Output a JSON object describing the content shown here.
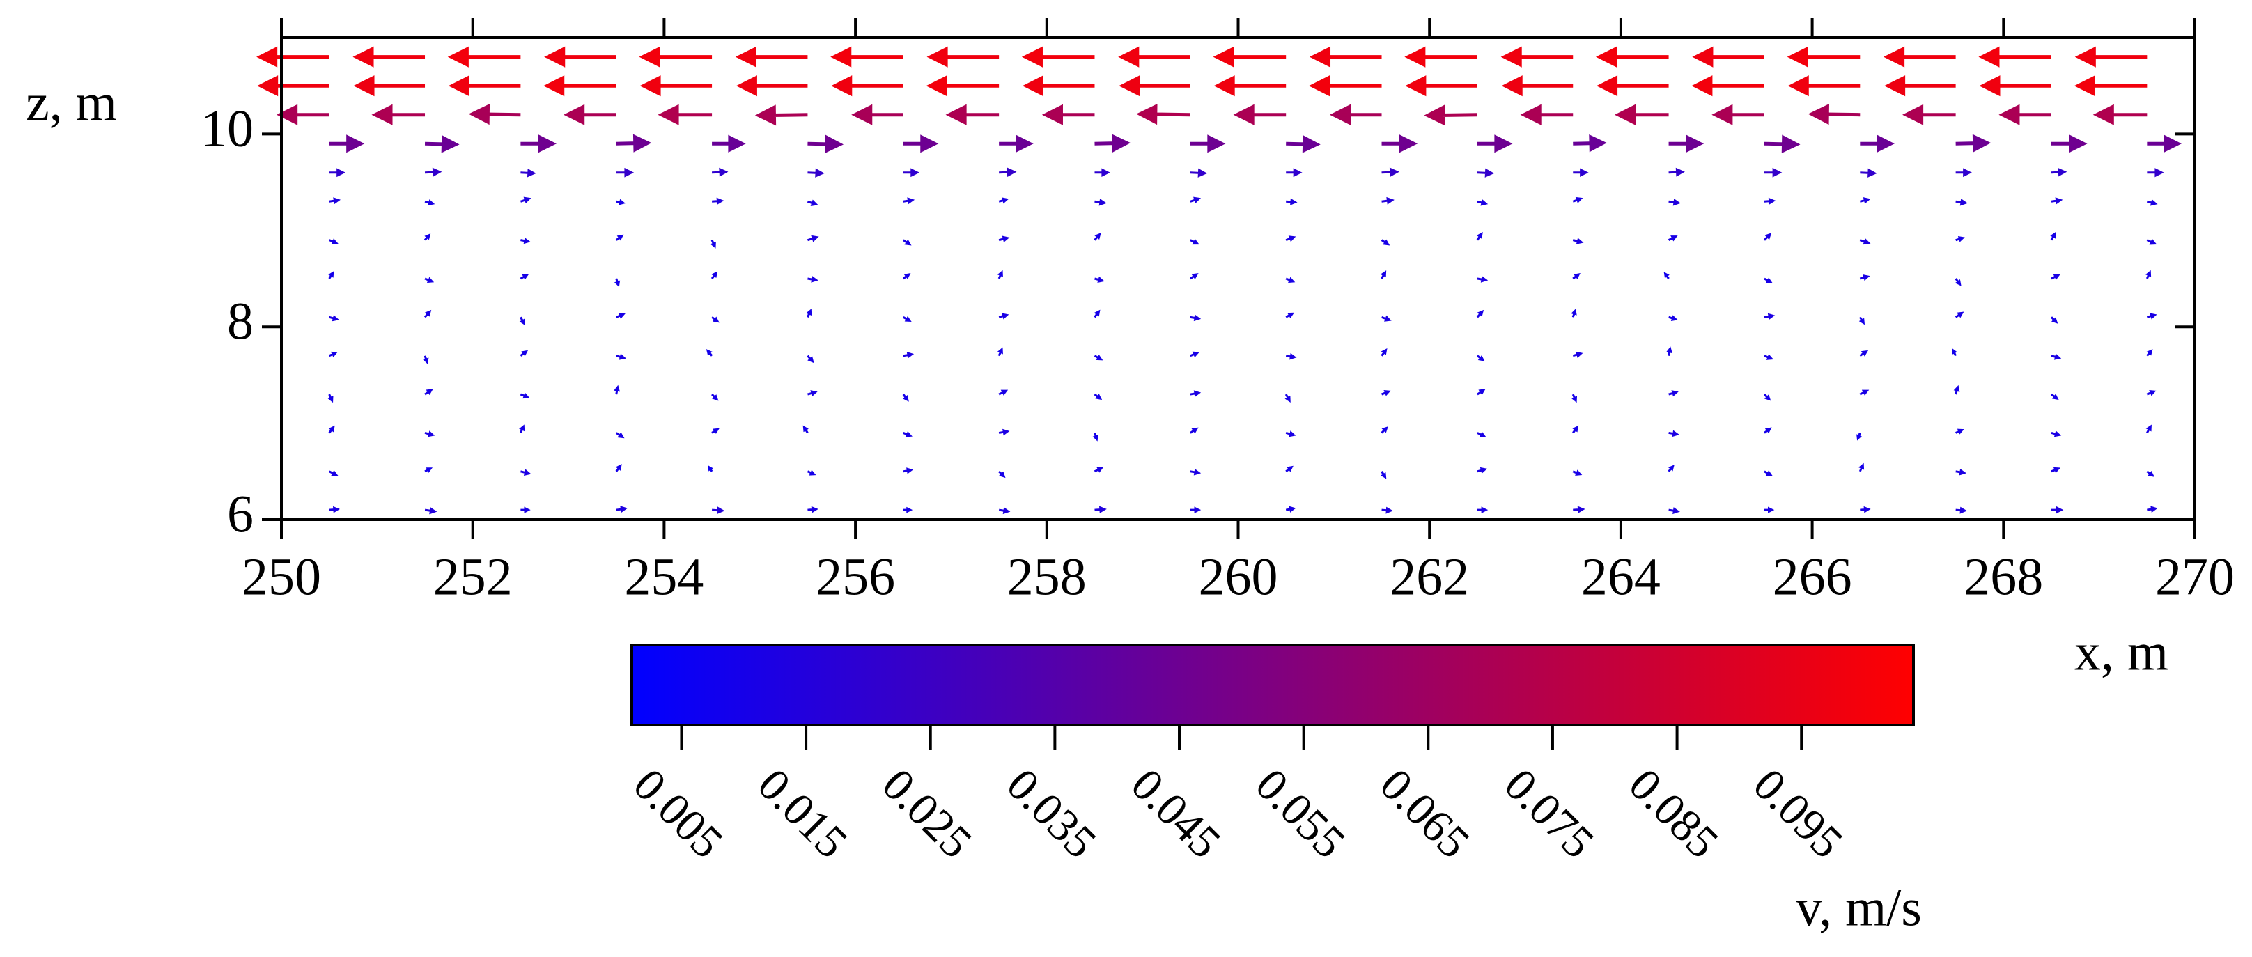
{
  "chart_data": {
    "type": "quiver",
    "xlabel": "x, m",
    "ylabel": "z, m",
    "colorbar_label": "v, m/s",
    "xlim": [
      250,
      270
    ],
    "xticks": [
      250,
      252,
      254,
      256,
      258,
      260,
      262,
      264,
      266,
      268,
      270
    ],
    "ylim": [
      6,
      11
    ],
    "yticks": [
      6,
      8,
      10
    ],
    "colormap": [
      "#0000ff",
      "#ff0000"
    ],
    "clim": [
      0.001,
      0.104
    ],
    "cticks": [
      0.005,
      0.015,
      0.025,
      0.035,
      0.045,
      0.055,
      0.065,
      0.075,
      0.085,
      0.095
    ],
    "x": [
      250.5,
      251.5,
      252.5,
      253.5,
      254.5,
      255.5,
      256.5,
      257.5,
      258.5,
      259.5,
      260.5,
      261.5,
      262.5,
      263.5,
      264.5,
      265.5,
      266.5,
      267.5,
      268.5,
      269.5
    ],
    "z": [
      6.1,
      6.5,
      6.9,
      7.3,
      7.7,
      8.1,
      8.5,
      8.9,
      9.3,
      9.6,
      9.9,
      10.2,
      10.5,
      10.8
    ],
    "u": [
      [
        0.012,
        0.014,
        0.011,
        0.013,
        0.015,
        0.012,
        0.01,
        0.013,
        0.014,
        0.012,
        0.011,
        0.013,
        0.012,
        0.014,
        0.013,
        0.011,
        0.012,
        0.013,
        0.014,
        0.012
      ],
      [
        0.01,
        0.008,
        0.012,
        0.006,
        -0.004,
        0.009,
        0.011,
        0.007,
        0.01,
        0.012,
        0.008,
        0.005,
        0.011,
        0.01,
        0.006,
        0.009,
        0.004,
        0.012,
        0.01,
        0.008
      ],
      [
        0.006,
        0.011,
        0.004,
        0.009,
        0.008,
        -0.005,
        0.01,
        0.012,
        0.003,
        0.009,
        0.011,
        0.007,
        0.01,
        0.006,
        0.012,
        0.008,
        -0.003,
        0.009,
        0.011,
        0.005
      ],
      [
        0.004,
        0.009,
        0.01,
        0.002,
        0.007,
        0.011,
        0.006,
        0.01,
        0.008,
        0.012,
        0.005,
        0.01,
        0.009,
        0.004,
        0.011,
        0.007,
        0.01,
        0.003,
        0.008,
        0.01
      ],
      [
        0.009,
        0.003,
        0.008,
        0.011,
        -0.006,
        0.007,
        0.012,
        0.004,
        0.009,
        0.01,
        0.012,
        0.006,
        0.008,
        0.011,
        0.002,
        0.01,
        0.009,
        -0.004,
        0.011,
        0.006
      ],
      [
        0.011,
        0.007,
        0.005,
        0.01,
        0.008,
        0.004,
        0.009,
        0.011,
        0.006,
        0.012,
        0.009,
        0.011,
        0.007,
        0.003,
        0.01,
        0.012,
        0.005,
        0.009,
        0.007,
        0.011
      ],
      [
        0.005,
        0.01,
        0.009,
        0.003,
        0.006,
        0.012,
        0.008,
        0.004,
        0.011,
        0.009,
        0.01,
        0.005,
        0.012,
        0.008,
        -0.005,
        0.009,
        0.011,
        0.006,
        0.01,
        0.004
      ],
      [
        0.01,
        0.006,
        0.011,
        0.008,
        0.004,
        0.013,
        0.009,
        0.012,
        0.007,
        0.01,
        0.011,
        0.009,
        0.006,
        0.012,
        0.01,
        0.008,
        0.012,
        0.01,
        0.005,
        0.011
      ],
      [
        0.013,
        0.011,
        0.012,
        0.01,
        0.014,
        0.012,
        0.013,
        0.011,
        0.014,
        0.012,
        0.013,
        0.015,
        0.012,
        0.011,
        0.014,
        0.013,
        0.012,
        0.014,
        0.013,
        0.012
      ],
      [
        0.02,
        0.021,
        0.019,
        0.022,
        0.02,
        0.021,
        0.02,
        0.022,
        0.019,
        0.021,
        0.02,
        0.022,
        0.021,
        0.019,
        0.02,
        0.022,
        0.021,
        0.02,
        0.019,
        0.021
      ],
      [
        0.045,
        0.044,
        0.046,
        0.045,
        0.043,
        0.046,
        0.045,
        0.044,
        0.046,
        0.045,
        0.044,
        0.046,
        0.045,
        0.043,
        0.045,
        0.046,
        0.044,
        0.045,
        0.046,
        0.044
      ],
      [
        -0.07,
        -0.071,
        -0.069,
        -0.07,
        -0.072,
        -0.07,
        -0.069,
        -0.071,
        -0.07,
        -0.072,
        -0.07,
        -0.069,
        -0.071,
        -0.07,
        -0.072,
        -0.07,
        -0.069,
        -0.071,
        -0.07,
        -0.072
      ],
      [
        -0.098,
        -0.097,
        -0.098,
        -0.099,
        -0.098,
        -0.097,
        -0.098,
        -0.099,
        -0.098,
        -0.097,
        -0.098,
        -0.099,
        -0.098,
        -0.097,
        -0.098,
        -0.099,
        -0.098,
        -0.097,
        -0.098,
        -0.099
      ],
      [
        -0.099,
        -0.098,
        -0.099,
        -0.098,
        -0.099,
        -0.098,
        -0.099,
        -0.098,
        -0.099,
        -0.098,
        -0.099,
        -0.098,
        -0.099,
        -0.098,
        -0.099,
        -0.098,
        -0.099,
        -0.098,
        -0.099,
        -0.098
      ]
    ],
    "w": [
      [
        0.001,
        -0.002,
        0.0,
        0.002,
        -0.001,
        0.001,
        0.0,
        -0.002,
        0.001,
        0.0,
        0.002,
        -0.001,
        0.0,
        0.001,
        -0.002,
        0.0,
        0.001,
        -0.001,
        0.0,
        0.002
      ],
      [
        -0.005,
        0.004,
        -0.003,
        0.008,
        0.006,
        -0.004,
        0.002,
        -0.007,
        0.005,
        -0.002,
        0.006,
        -0.008,
        0.003,
        -0.004,
        0.007,
        -0.005,
        0.009,
        -0.002,
        0.004,
        -0.006
      ],
      [
        0.008,
        -0.003,
        0.009,
        -0.006,
        0.005,
        0.008,
        -0.004,
        0.002,
        -0.009,
        0.006,
        -0.003,
        0.007,
        -0.005,
        0.008,
        -0.002,
        0.006,
        -0.008,
        0.004,
        -0.003,
        0.009
      ],
      [
        -0.009,
        0.006,
        -0.004,
        0.01,
        -0.007,
        0.003,
        -0.008,
        0.005,
        -0.006,
        0.002,
        -0.009,
        0.004,
        0.006,
        -0.009,
        0.003,
        -0.007,
        0.005,
        0.01,
        -0.006,
        0.004
      ],
      [
        0.004,
        -0.009,
        0.006,
        -0.003,
        0.007,
        -0.008,
        0.002,
        0.009,
        -0.005,
        0.004,
        -0.002,
        0.008,
        -0.006,
        0.003,
        0.01,
        -0.004,
        0.006,
        0.008,
        -0.003,
        0.007
      ],
      [
        -0.003,
        0.008,
        -0.009,
        0.004,
        -0.006,
        0.009,
        -0.005,
        0.003,
        0.008,
        -0.002,
        0.005,
        -0.004,
        0.008,
        0.009,
        -0.003,
        0.002,
        -0.008,
        0.006,
        -0.007,
        0.003
      ],
      [
        0.008,
        -0.004,
        0.005,
        -0.009,
        0.008,
        -0.002,
        0.006,
        0.009,
        -0.003,
        0.006,
        -0.004,
        0.009,
        -0.002,
        0.006,
        0.007,
        -0.005,
        0.003,
        -0.008,
        0.005,
        0.009
      ],
      [
        -0.004,
        0.007,
        -0.002,
        0.006,
        -0.009,
        0.004,
        -0.006,
        0.003,
        0.008,
        -0.005,
        0.004,
        -0.006,
        0.009,
        -0.003,
        0.005,
        0.008,
        -0.004,
        0.003,
        0.009,
        -0.005
      ],
      [
        0.002,
        -0.003,
        0.004,
        -0.002,
        0.001,
        -0.004,
        0.002,
        0.003,
        -0.002,
        0.004,
        -0.001,
        0.002,
        -0.003,
        0.004,
        -0.002,
        0.001,
        0.003,
        -0.002,
        0.002,
        -0.003
      ],
      [
        0.0,
        0.001,
        -0.001,
        0.0,
        0.001,
        -0.001,
        0.0,
        0.001,
        0.0,
        -0.001,
        0.0,
        0.001,
        -0.001,
        0.0,
        0.001,
        0.0,
        -0.001,
        0.0,
        0.001,
        0.0
      ],
      [
        0.0,
        -0.001,
        0.0,
        0.001,
        0.0,
        -0.001,
        0.0,
        0.0,
        0.001,
        0.0,
        -0.001,
        0.0,
        0.0,
        0.001,
        0.0,
        -0.001,
        0.0,
        0.001,
        0.0,
        0.0
      ],
      [
        0.0,
        0.0,
        0.001,
        0.0,
        0.0,
        -0.001,
        0.0,
        0.0,
        0.0,
        0.001,
        0.0,
        0.0,
        -0.001,
        0.0,
        0.0,
        0.0,
        0.001,
        0.0,
        0.0,
        0.0
      ],
      [
        0.0,
        0.0,
        0.0,
        0.0,
        0.0,
        0.0,
        0.0,
        0.0,
        0.0,
        0.0,
        0.0,
        0.0,
        0.0,
        0.0,
        0.0,
        0.0,
        0.0,
        0.0,
        0.0,
        0.0
      ],
      [
        0.0,
        0.0,
        0.0,
        0.0,
        0.0,
        0.0,
        0.0,
        0.0,
        0.0,
        0.0,
        0.0,
        0.0,
        0.0,
        0.0,
        0.0,
        0.0,
        0.0,
        0.0,
        0.0,
        0.0
      ]
    ]
  }
}
